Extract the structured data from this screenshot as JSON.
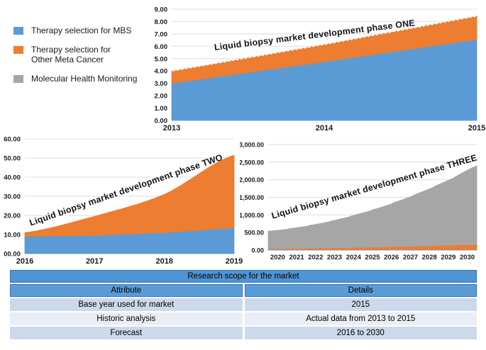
{
  "legend": {
    "items": [
      {
        "lines": [
          "Therapy selection for MBS"
        ],
        "color": "#5b9bd5"
      },
      {
        "lines": [
          "Therapy selection for",
          "Other Meta Cancer"
        ],
        "color": "#ed7d31"
      },
      {
        "lines": [
          "Molecular Health Monitoring"
        ],
        "color": "#a6a6a6"
      }
    ]
  },
  "chart_data": [
    {
      "id": "phase_one",
      "type": "area",
      "title": "Liquid biopsy market development phase ONE",
      "x_labels": [
        "2013",
        "2014",
        "2015"
      ],
      "ylim": [
        0,
        9
      ],
      "y_ticks": [
        "0.00",
        "1.00",
        "2.00",
        "3.00",
        "4.00",
        "5.00",
        "6.00",
        "7.00",
        "8.00",
        "9.00"
      ],
      "grid": true,
      "legend_position": "none",
      "series": [
        {
          "name": "Therapy selection for MBS",
          "color": "#5b9bd5",
          "interp": "linear",
          "values": [
            3.0,
            4.75,
            6.55
          ]
        },
        {
          "name": "Therapy selection for Other Meta Cancer",
          "color": "#ed7d31",
          "interp": "linear",
          "values": [
            0.95,
            1.35,
            1.85
          ]
        }
      ]
    },
    {
      "id": "phase_two",
      "type": "area",
      "title": "Liquid biopsy market development phase TWO",
      "x_labels": [
        "2016",
        "2017",
        "2018",
        "2019"
      ],
      "ylim": [
        0,
        60
      ],
      "y_ticks": [
        "00.00",
        "10.00",
        "20.00",
        "30.00",
        "40.00",
        "50.00",
        "60.00"
      ],
      "grid": true,
      "legend_position": "none",
      "series": [
        {
          "name": "Therapy selection for MBS",
          "color": "#5b9bd5",
          "interp": "linear",
          "values": [
            9,
            9.5,
            11,
            13.5
          ]
        },
        {
          "name": "Therapy selection for Other Meta Cancer",
          "color": "#ed7d31",
          "interp": "smooth",
          "values": [
            2,
            10,
            20,
            38
          ]
        }
      ]
    },
    {
      "id": "phase_three",
      "type": "area",
      "title": "Liquid biopsy market development phase THREE",
      "x_labels": [
        "2020",
        "2021",
        "2022",
        "2023",
        "2024",
        "2025",
        "2026",
        "2027",
        "2028",
        "2029",
        "2030"
      ],
      "ylim": [
        0,
        3000
      ],
      "y_ticks": [
        "0.00",
        "500.00",
        "1,000.00",
        "1,500.00",
        "2,000.00",
        "2,500.00",
        "3,000.00"
      ],
      "grid": true,
      "legend_position": "none",
      "series": [
        {
          "name": "Therapy selection for MBS",
          "color": "#5b9bd5",
          "interp": "linear",
          "values": [
            10,
            11,
            12,
            12,
            13,
            14,
            15,
            16,
            17,
            18,
            20
          ]
        },
        {
          "name": "Therapy selection for Other Meta Cancer",
          "color": "#ed7d31",
          "interp": "step",
          "values": [
            25,
            35,
            45,
            55,
            65,
            75,
            90,
            105,
            120,
            135,
            150
          ]
        },
        {
          "name": "Molecular Health Monitoring",
          "color": "#a6a6a6",
          "interp": "smooth",
          "values": [
            505,
            563,
            647,
            758,
            894,
            1056,
            1239,
            1448,
            1683,
            1944,
            2230
          ]
        }
      ]
    }
  ],
  "table": {
    "title": "Research scope for the market",
    "columns": [
      "Attribute",
      "Details"
    ],
    "rows": [
      {
        "attribute": "Base year used for market",
        "details": "2015"
      },
      {
        "attribute": "Historic analysis",
        "details": "Actual data from 2013 to 2015"
      },
      {
        "attribute": "Forecast",
        "details": "2016 to 2030"
      }
    ],
    "colors": {
      "title_bg": "#4f94d3",
      "header_bg": "#5b9bd5",
      "row_alt": [
        "#ccd9ea",
        "#e9eef6"
      ]
    }
  }
}
